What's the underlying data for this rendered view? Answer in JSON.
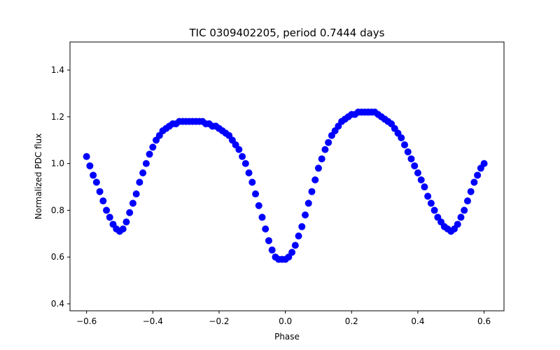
{
  "chart_data": {
    "type": "scatter",
    "title": "TIC 0309402205, period 0.7444 days",
    "xlabel": "Phase",
    "ylabel": "Normalized PDC flux",
    "xlim": [
      -0.65,
      0.66
    ],
    "ylim": [
      0.37,
      1.52
    ],
    "x_ticks": [
      -0.6,
      -0.4,
      -0.2,
      0.0,
      0.2,
      0.4,
      0.6
    ],
    "x_tick_labels": [
      "−0.6",
      "−0.4",
      "−0.2",
      "0.0",
      "0.2",
      "0.4",
      "0.6"
    ],
    "y_ticks": [
      0.4,
      0.6,
      0.8,
      1.0,
      1.2,
      1.4
    ],
    "y_tick_labels": [
      "0.4",
      "0.6",
      "0.8",
      "1.0",
      "1.2",
      "1.4"
    ],
    "grid": false,
    "legend": "none",
    "marker_color": "#0000ff",
    "series": [
      {
        "x": [
          -0.6,
          -0.59,
          -0.58,
          -0.57,
          -0.56,
          -0.55,
          -0.54,
          -0.53,
          -0.52,
          -0.51,
          -0.5,
          -0.49,
          -0.48,
          -0.47,
          -0.46,
          -0.45,
          -0.44,
          -0.43,
          -0.42,
          -0.41,
          -0.4,
          -0.39,
          -0.38,
          -0.37,
          -0.36,
          -0.35,
          -0.34,
          -0.33,
          -0.32,
          -0.31,
          -0.3,
          -0.29,
          -0.28,
          -0.27,
          -0.26,
          -0.25,
          -0.24,
          -0.23,
          -0.22,
          -0.21,
          -0.2,
          -0.19,
          -0.18,
          -0.17,
          -0.16,
          -0.15,
          -0.14,
          -0.13,
          -0.12,
          -0.11,
          -0.1,
          -0.09,
          -0.08,
          -0.07,
          -0.06,
          -0.05,
          -0.04,
          -0.03,
          -0.02,
          -0.01,
          0.0,
          0.01,
          0.02,
          0.03,
          0.04,
          0.05,
          0.06,
          0.07,
          0.08,
          0.09,
          0.1,
          0.11,
          0.12,
          0.13,
          0.14,
          0.15,
          0.16,
          0.17,
          0.18,
          0.19,
          0.2,
          0.21,
          0.22,
          0.23,
          0.24,
          0.25,
          0.26,
          0.27,
          0.28,
          0.29,
          0.3,
          0.31,
          0.32,
          0.33,
          0.34,
          0.35,
          0.36,
          0.37,
          0.38,
          0.39,
          0.4,
          0.41,
          0.42,
          0.43,
          0.44,
          0.45,
          0.46,
          0.47,
          0.48,
          0.49,
          0.5,
          0.51,
          0.52,
          0.53,
          0.54,
          0.55,
          0.56,
          0.57,
          0.58,
          0.59,
          0.6
        ],
        "y": [
          1.03,
          0.99,
          0.95,
          0.92,
          0.88,
          0.84,
          0.8,
          0.77,
          0.74,
          0.72,
          0.71,
          0.72,
          0.75,
          0.79,
          0.83,
          0.87,
          0.92,
          0.96,
          1.0,
          1.04,
          1.07,
          1.1,
          1.12,
          1.14,
          1.15,
          1.16,
          1.17,
          1.17,
          1.18,
          1.18,
          1.18,
          1.18,
          1.18,
          1.18,
          1.18,
          1.18,
          1.17,
          1.17,
          1.16,
          1.16,
          1.15,
          1.14,
          1.13,
          1.12,
          1.1,
          1.08,
          1.06,
          1.03,
          1.0,
          0.96,
          0.92,
          0.87,
          0.82,
          0.77,
          0.72,
          0.67,
          0.63,
          0.6,
          0.59,
          0.59,
          0.59,
          0.6,
          0.62,
          0.65,
          0.69,
          0.73,
          0.78,
          0.83,
          0.88,
          0.93,
          0.98,
          1.02,
          1.06,
          1.09,
          1.12,
          1.14,
          1.16,
          1.18,
          1.19,
          1.2,
          1.21,
          1.21,
          1.22,
          1.22,
          1.22,
          1.22,
          1.22,
          1.22,
          1.21,
          1.2,
          1.19,
          1.18,
          1.17,
          1.15,
          1.13,
          1.11,
          1.08,
          1.05,
          1.02,
          0.99,
          0.96,
          0.93,
          0.9,
          0.86,
          0.83,
          0.8,
          0.77,
          0.75,
          0.73,
          0.72,
          0.71,
          0.72,
          0.74,
          0.77,
          0.8,
          0.84,
          0.88,
          0.92,
          0.95,
          0.98,
          1.0
        ]
      }
    ]
  }
}
